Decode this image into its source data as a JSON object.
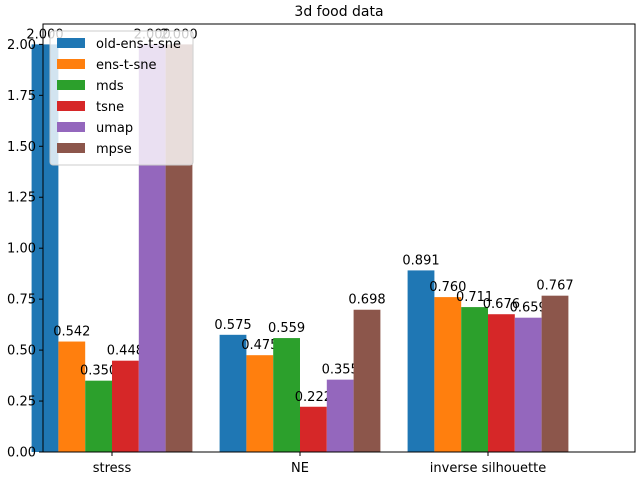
{
  "chart_data": {
    "type": "bar",
    "title": "3d food data",
    "xlabel": "",
    "ylabel": "",
    "categories": [
      "stress",
      "NE",
      "inverse silhouette"
    ],
    "ylim": [
      0,
      2.1
    ],
    "yticks": [
      0.0,
      0.25,
      0.5,
      0.75,
      1.0,
      1.25,
      1.5,
      1.75,
      2.0
    ],
    "ytick_labels": [
      "0.00",
      "0.25",
      "0.50",
      "0.75",
      "1.00",
      "1.25",
      "1.50",
      "1.75",
      "2.00"
    ],
    "grid": false,
    "legend_position": "top-left",
    "series": [
      {
        "name": "old-ens-t-sne",
        "color": "#1f77b4",
        "values": [
          2.0,
          0.575,
          0.891
        ],
        "labels": [
          "2.000",
          "0.575",
          "0.891"
        ]
      },
      {
        "name": "ens-t-sne",
        "color": "#ff7f0e",
        "values": [
          0.542,
          0.475,
          0.76
        ],
        "labels": [
          "0.542",
          "0.475",
          "0.760"
        ]
      },
      {
        "name": "mds",
        "color": "#2ca02c",
        "values": [
          0.35,
          0.559,
          0.711
        ],
        "labels": [
          "0.350",
          "0.559",
          "0.711"
        ]
      },
      {
        "name": "tsne",
        "color": "#d62728",
        "values": [
          0.448,
          0.222,
          0.676
        ],
        "labels": [
          "0.448",
          "0.222",
          "0.676"
        ]
      },
      {
        "name": "umap",
        "color": "#9467bd",
        "values": [
          2.0,
          0.355,
          0.659
        ],
        "labels": [
          "2.000",
          "0.355",
          "0.659"
        ]
      },
      {
        "name": "mpse",
        "color": "#8c564b",
        "values": [
          2.0,
          0.698,
          0.767
        ],
        "labels": [
          "2.000",
          "0.698",
          "0.767"
        ]
      }
    ]
  }
}
